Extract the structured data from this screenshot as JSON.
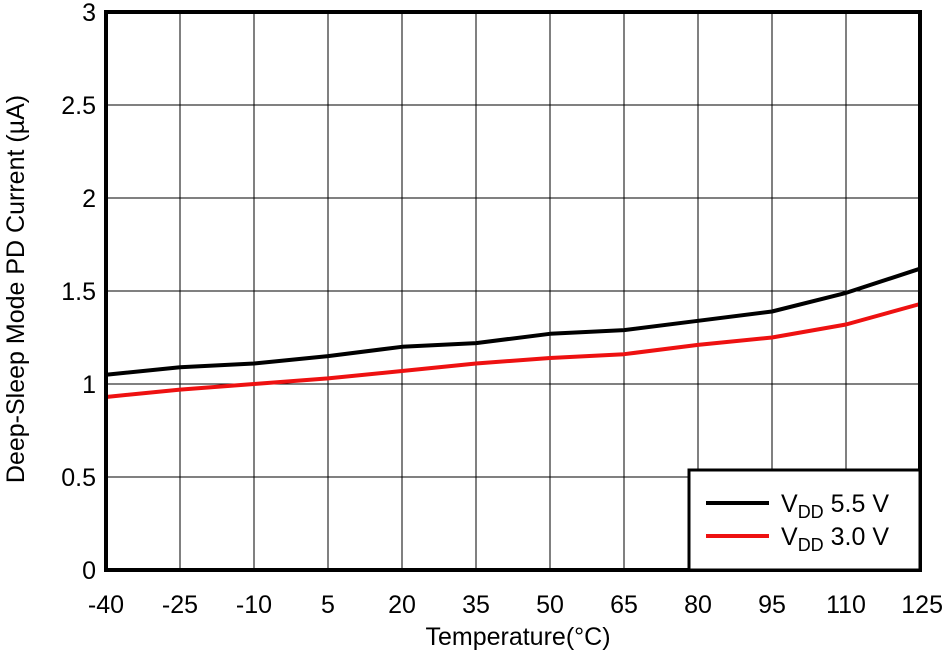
{
  "chart_data": {
    "type": "line",
    "title": "",
    "xlabel": "Temperature(°C)",
    "ylabel": "Deep-Sleep Mode PD Current (µA)",
    "x": [
      -40,
      -25,
      -10,
      5,
      20,
      35,
      50,
      65,
      80,
      95,
      110,
      125
    ],
    "xlim": [
      -40,
      125
    ],
    "ylim": [
      0,
      3
    ],
    "x_ticks": [
      "-40",
      "-25",
      "-10",
      "5",
      "20",
      "35",
      "50",
      "65",
      "80",
      "95",
      "110",
      "125"
    ],
    "y_ticks": [
      "0",
      "0.5",
      "1",
      "1.5",
      "2",
      "2.5",
      "3"
    ],
    "grid": true,
    "legend_position": "bottom-right",
    "series": [
      {
        "name_main": "V",
        "name_sub": "DD",
        "name_rest": " 5.5 V",
        "color": "#000000",
        "values": [
          1.05,
          1.09,
          1.11,
          1.15,
          1.2,
          1.22,
          1.27,
          1.29,
          1.34,
          1.39,
          1.49,
          1.62
        ]
      },
      {
        "name_main": "V",
        "name_sub": "DD",
        "name_rest": " 3.0 V",
        "color": "#ee1111",
        "values": [
          0.93,
          0.97,
          1.0,
          1.03,
          1.07,
          1.11,
          1.14,
          1.16,
          1.21,
          1.25,
          1.32,
          1.43
        ]
      }
    ]
  }
}
